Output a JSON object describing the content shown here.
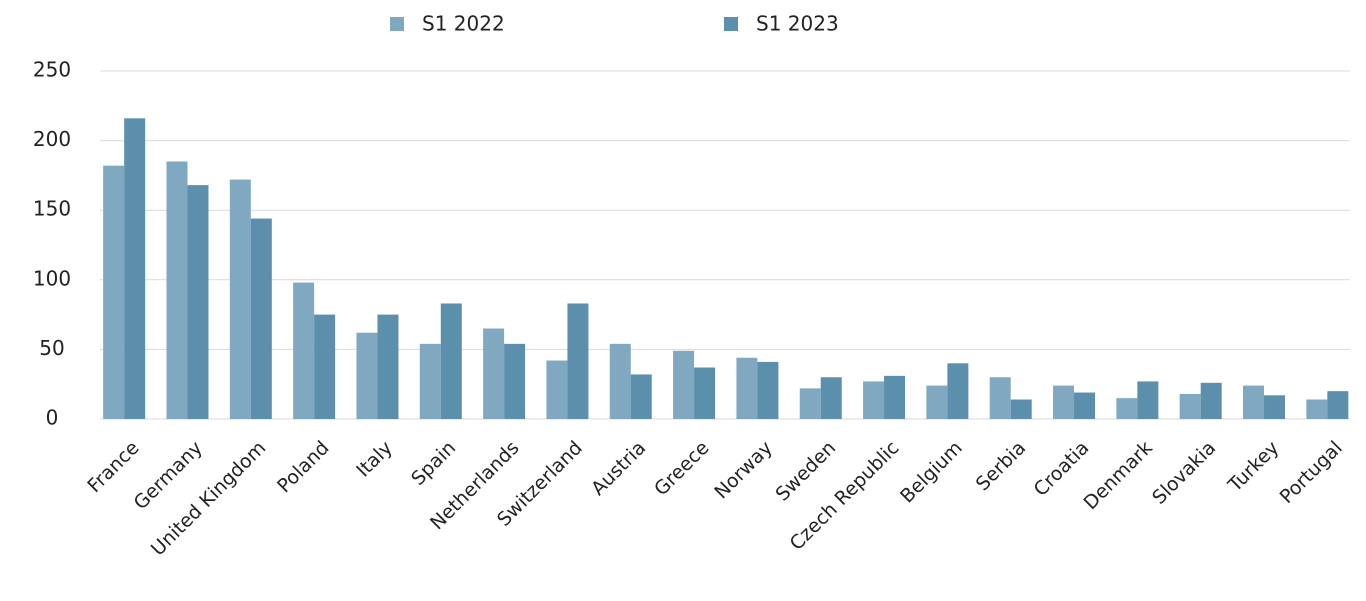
{
  "chart_data": {
    "type": "bar",
    "categories": [
      "France",
      "Germany",
      "United Kingdom",
      "Poland",
      "Italy",
      "Spain",
      "Netherlands",
      "Switzerland",
      "Austria",
      "Greece",
      "Norway",
      "Sweden",
      "Czech Republic",
      "Belgium",
      "Serbia",
      "Croatia",
      "Denmark",
      "Slovakia",
      "Turkey",
      "Portugal"
    ],
    "series": [
      {
        "name": "S1 2022",
        "color": "#80a8c0",
        "values": [
          182,
          185,
          172,
          98,
          62,
          54,
          65,
          42,
          54,
          49,
          44,
          22,
          27,
          24,
          30,
          24,
          15,
          18,
          24,
          14
        ]
      },
      {
        "name": "S1 2023",
        "color": "#5b8fac",
        "values": [
          216,
          168,
          144,
          75,
          75,
          83,
          54,
          83,
          32,
          37,
          41,
          30,
          31,
          40,
          14,
          19,
          27,
          26,
          17,
          20
        ]
      }
    ],
    "ylim": [
      0,
      250
    ],
    "yticks": [
      0,
      50,
      100,
      150,
      200,
      250
    ],
    "grid": true,
    "legend": "top"
  }
}
